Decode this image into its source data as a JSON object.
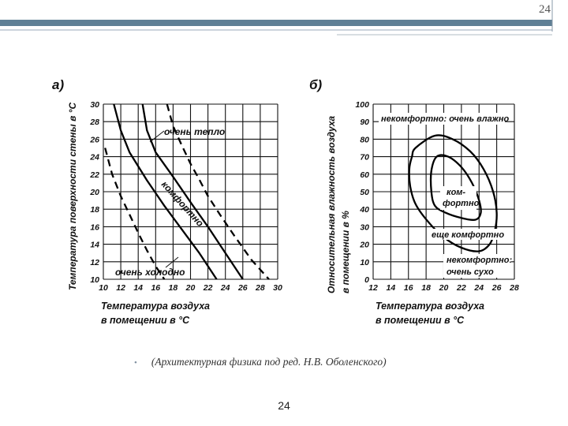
{
  "slide": {
    "page_number_top": "24",
    "caption": "(Архитектурная физика под ред. Н.В. Оболенского)",
    "page_number_bottom": "24",
    "colors": {
      "header_bar": "#5f7f95",
      "header_line": "#9aaab8",
      "bullet": "#7f8f9f"
    }
  },
  "chart_data": [
    {
      "panel": "а)",
      "type": "line",
      "ylabel": "Температура поверхности стены в °С",
      "xlabel": "Температура воздуха в помещении в °С",
      "x_ticks": [
        10,
        12,
        14,
        16,
        18,
        20,
        22,
        24,
        26,
        28,
        30
      ],
      "y_ticks": [
        10,
        12,
        14,
        16,
        18,
        20,
        22,
        24,
        26,
        28,
        30
      ],
      "xlim": [
        10,
        30
      ],
      "ylim": [
        10,
        30
      ],
      "grid": true,
      "series": [
        {
          "name": "очень тепло",
          "style": "dashed",
          "x": [
            17.3,
            18,
            19,
            20,
            21,
            22,
            23.5,
            25,
            27,
            29
          ],
          "y": [
            30,
            27.5,
            25.3,
            23.2,
            21.4,
            19.5,
            17.2,
            15,
            12.2,
            10
          ]
        },
        {
          "name": "комфортно",
          "style": "solid",
          "x": [
            14.5,
            15,
            16,
            18,
            20,
            22,
            24,
            26
          ],
          "y": [
            30,
            27,
            24.5,
            21.7,
            18.8,
            16,
            13,
            10
          ]
        },
        {
          "name": "",
          "style": "solid",
          "x": [
            11.2,
            12,
            13,
            15,
            17,
            19,
            21,
            23
          ],
          "y": [
            30,
            27,
            24.5,
            21.3,
            18.4,
            15.7,
            13,
            10
          ]
        },
        {
          "name": "очень холодно",
          "style": "dashed",
          "x": [
            10.2,
            11,
            12,
            13,
            14,
            15,
            16,
            17
          ],
          "y": [
            25,
            22,
            19.5,
            17.4,
            15.3,
            13.3,
            11.5,
            10
          ]
        }
      ],
      "annotations": [
        "очень тепло",
        "комфортно",
        "очень холодно"
      ]
    },
    {
      "panel": "б)",
      "type": "line",
      "ylabel": "Относительная влажность воздуха в помещении в %",
      "xlabel": "Температура воздуха в помещении в °С",
      "x_ticks": [
        12,
        14,
        16,
        18,
        20,
        22,
        24,
        26,
        28
      ],
      "y_ticks": [
        0,
        10,
        20,
        30,
        40,
        50,
        60,
        70,
        80,
        90,
        100
      ],
      "xlim": [
        12,
        28
      ],
      "ylim": [
        0,
        100
      ],
      "grid": true,
      "series": [
        {
          "name": "еще комфортно",
          "style": "solid closed",
          "x": [
            16.8,
            19,
            21,
            23,
            24.5,
            25.6,
            26,
            25.8,
            25.2,
            24,
            22,
            20,
            18.2,
            16.8,
            16.2,
            16.1,
            16.4,
            16.8
          ],
          "y": [
            75,
            82,
            80,
            73,
            63,
            50,
            38,
            28,
            20,
            16,
            18,
            24,
            33,
            43,
            53,
            63,
            70,
            75
          ]
        },
        {
          "name": "комфортно",
          "style": "solid closed",
          "x": [
            19.2,
            20.5,
            22,
            23.2,
            24,
            24.2,
            23.6,
            22,
            20.2,
            19,
            18.6,
            18.6,
            19.2
          ],
          "y": [
            70,
            70,
            64,
            55,
            45,
            38,
            34,
            35,
            38,
            42,
            50,
            62,
            70
          ]
        }
      ],
      "annotations": [
        "некомфортно: очень влажно",
        "ком-фортно",
        "еще комфортно",
        "некомфортно: очень сухо"
      ]
    }
  ],
  "labels": {
    "a": {
      "panel": "а)",
      "ylabel": "Температура поверхности стены в °С",
      "xlabel_line1": "Температура воздуха",
      "xlabel_line2": "в помещении в °С",
      "ann_warm": "очень тепло",
      "ann_comfort": "комфортно",
      "ann_cold": "очень холодно"
    },
    "b": {
      "panel": "б)",
      "ylabel_line1": "Относительная влажность воздуха",
      "ylabel_line2": "в помещении      в %",
      "xlabel_line1": "Температура воздуха",
      "xlabel_line2": "в помещении в °С",
      "ann_humid": "некомфортно: очень влажно",
      "ann_comfort_1": "ком-",
      "ann_comfort_2": "фортно",
      "ann_still": "еще комфортно",
      "ann_dry_1": "некомфортно:",
      "ann_dry_2": "очень сухо"
    }
  }
}
